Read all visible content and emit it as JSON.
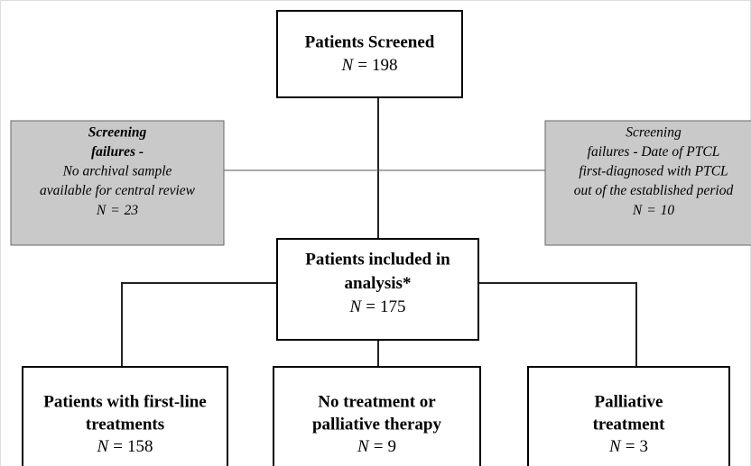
{
  "nodes": [
    {
      "lines": [
        "Patients Screened"
      ],
      "count": {
        "symbol": "N",
        "relation": "=",
        "value": 198
      }
    },
    {
      "lines": [
        "Screening",
        "failures -",
        "No archival sample",
        "available for central review"
      ],
      "count": {
        "symbol": "N",
        "relation": "=",
        "value": 23
      }
    },
    {
      "lines": [
        "Screening",
        "failures - Date of PTCL",
        "first-diagnosed with PTCL",
        "out of the established period"
      ],
      "count": {
        "symbol": "N",
        "relation": "=",
        "value": 10
      }
    },
    {
      "lines": [
        "Patients included in",
        "analysis*"
      ],
      "count": {
        "symbol": "N",
        "relation": "=",
        "value": 175
      }
    },
    {
      "lines": [
        "Patients with first-line",
        "treatments"
      ],
      "count": {
        "symbol": "N",
        "relation": "=",
        "value": 158
      }
    },
    {
      "lines": [
        "No treatment or",
        "palliative therapy"
      ],
      "count": {
        "symbol": "N",
        "relation": "=",
        "value": 9
      }
    },
    {
      "lines": [
        "Palliative",
        "treatment"
      ],
      "count": {
        "symbol": "N",
        "relation": "=",
        "value": 3
      }
    }
  ]
}
